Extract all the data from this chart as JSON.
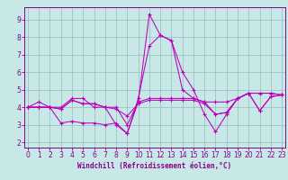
{
  "title": "",
  "xlabel": "Windchill (Refroidissement éolien,°C)",
  "bg_color": "#c8e8e8",
  "line_color": "#bb00bb",
  "grid_color": "#99bbbb",
  "axis_color": "#880088",
  "tick_color": "#880088",
  "x_ticks": [
    0,
    1,
    2,
    3,
    4,
    5,
    6,
    7,
    8,
    9,
    10,
    11,
    12,
    13,
    14,
    15,
    16,
    17,
    18,
    19,
    20,
    21,
    22,
    23
  ],
  "y_ticks": [
    2,
    3,
    4,
    5,
    6,
    7,
    8,
    9
  ],
  "xlim": [
    -0.3,
    23.3
  ],
  "ylim": [
    1.7,
    9.7
  ],
  "series": [
    [
      4.0,
      4.3,
      4.0,
      4.0,
      4.5,
      4.5,
      4.0,
      4.0,
      3.0,
      2.5,
      4.5,
      7.5,
      8.1,
      7.8,
      6.0,
      5.0,
      3.6,
      2.6,
      3.6,
      4.5,
      4.8,
      3.8,
      4.6,
      4.7
    ],
    [
      4.0,
      4.0,
      4.0,
      3.1,
      3.2,
      3.1,
      3.1,
      3.0,
      3.1,
      2.5,
      4.3,
      9.3,
      8.1,
      7.8,
      5.0,
      4.5,
      4.3,
      3.6,
      3.7,
      4.5,
      4.8,
      4.8,
      4.8,
      4.7
    ],
    [
      4.0,
      4.0,
      4.0,
      3.9,
      4.4,
      4.2,
      4.2,
      4.0,
      4.0,
      3.0,
      4.3,
      4.5,
      4.5,
      4.5,
      4.5,
      4.5,
      4.3,
      4.3,
      4.3,
      4.5,
      4.8,
      4.8,
      4.8,
      4.7
    ],
    [
      4.0,
      4.0,
      4.0,
      3.9,
      4.4,
      4.2,
      4.2,
      4.0,
      3.9,
      3.5,
      4.2,
      4.4,
      4.4,
      4.4,
      4.4,
      4.4,
      4.2,
      3.6,
      3.7,
      4.5,
      4.8,
      3.8,
      4.6,
      4.7
    ]
  ],
  "xlabel_fontsize": 5.5,
  "tick_fontsize": 5.5,
  "marker_size": 3.0,
  "line_width": 0.75
}
